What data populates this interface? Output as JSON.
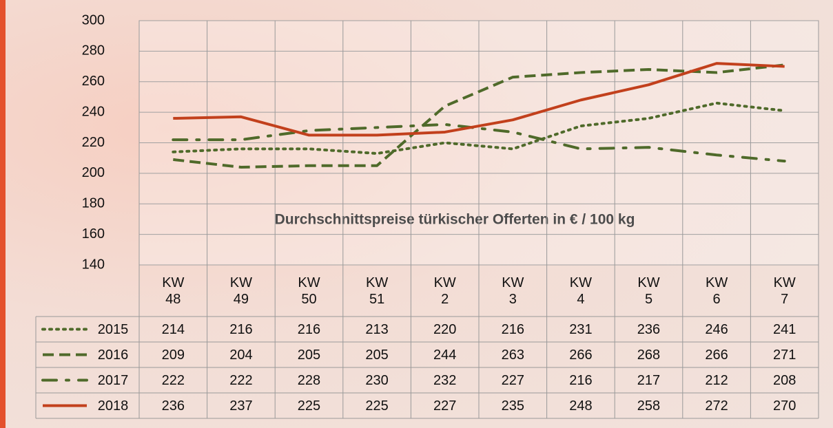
{
  "chart_data": {
    "type": "line",
    "title": "Durchschnittspreise türkischer Offerten in € / 100 kg",
    "categories": [
      "KW 48",
      "KW 49",
      "KW 50",
      "KW 51",
      "KW 2",
      "KW 3",
      "KW 4",
      "KW 5",
      "KW 6",
      "KW 7"
    ],
    "series": [
      {
        "name": "2015",
        "color": "#4f6a2a",
        "dash": "dotted",
        "values": [
          214,
          216,
          216,
          213,
          220,
          216,
          231,
          236,
          246,
          241
        ]
      },
      {
        "name": "2016",
        "color": "#4f6a2a",
        "dash": "dashed",
        "values": [
          209,
          204,
          205,
          205,
          244,
          263,
          266,
          268,
          266,
          271
        ]
      },
      {
        "name": "2017",
        "color": "#4f6a2a",
        "dash": "dashdot",
        "values": [
          222,
          222,
          228,
          230,
          232,
          227,
          216,
          217,
          212,
          208
        ]
      },
      {
        "name": "2018",
        "color": "#c2401c",
        "dash": "solid",
        "values": [
          236,
          237,
          225,
          225,
          227,
          235,
          248,
          258,
          272,
          270
        ]
      }
    ],
    "ylim": [
      140,
      300
    ],
    "yticks": [
      140,
      160,
      180,
      200,
      220,
      240,
      260,
      280,
      300
    ],
    "grid": true
  }
}
